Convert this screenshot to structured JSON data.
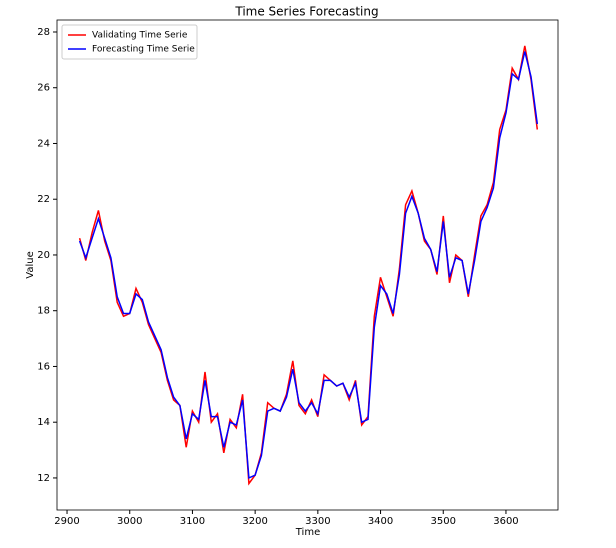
{
  "chart_data": {
    "type": "line",
    "title": "Time Series Forecasting",
    "x_label": "Time",
    "y_label": "Value",
    "x": [
      2920,
      2930,
      2940,
      2950,
      2960,
      2970,
      2980,
      2990,
      3000,
      3010,
      3020,
      3030,
      3040,
      3050,
      3060,
      3070,
      3080,
      3090,
      3100,
      3110,
      3120,
      3130,
      3140,
      3150,
      3160,
      3170,
      3180,
      3190,
      3200,
      3210,
      3220,
      3230,
      3240,
      3250,
      3260,
      3270,
      3280,
      3290,
      3300,
      3310,
      3320,
      3330,
      3340,
      3350,
      3360,
      3370,
      3380,
      3390,
      3400,
      3410,
      3420,
      3430,
      3440,
      3450,
      3460,
      3470,
      3480,
      3490,
      3500,
      3510,
      3520,
      3530,
      3540,
      3550,
      3560,
      3570,
      3580,
      3590,
      3600,
      3610,
      3620,
      3630,
      3640,
      3650
    ],
    "series": [
      {
        "name": "Validating Time Serie",
        "color": "#ff0000",
        "values": [
          20.6,
          19.8,
          20.8,
          21.6,
          20.5,
          19.8,
          18.3,
          17.8,
          17.9,
          18.8,
          18.3,
          17.5,
          17.0,
          16.5,
          15.5,
          14.8,
          14.6,
          13.1,
          14.4,
          14.0,
          15.8,
          14.0,
          14.3,
          12.9,
          14.1,
          13.8,
          15.0,
          11.8,
          12.1,
          12.9,
          14.7,
          14.5,
          14.4,
          15.0,
          16.2,
          14.6,
          14.3,
          14.8,
          14.2,
          15.7,
          15.5,
          15.3,
          15.4,
          14.8,
          15.5,
          13.9,
          14.2,
          17.8,
          19.2,
          18.5,
          17.8,
          19.5,
          21.8,
          22.3,
          21.5,
          20.5,
          20.2,
          19.3,
          21.4,
          19.0,
          20.0,
          19.8,
          18.5,
          20.0,
          21.4,
          21.8,
          22.6,
          24.5,
          25.2,
          26.7,
          26.3,
          27.5,
          26.3,
          24.5
        ]
      },
      {
        "name": "Forecasting Time Serie",
        "color": "#0000ff",
        "values": [
          20.5,
          19.9,
          20.6,
          21.3,
          20.6,
          19.9,
          18.5,
          17.9,
          17.9,
          18.6,
          18.4,
          17.6,
          17.1,
          16.6,
          15.6,
          14.9,
          14.6,
          13.4,
          14.3,
          14.1,
          15.5,
          14.2,
          14.2,
          13.1,
          14.0,
          13.9,
          14.8,
          12.0,
          12.1,
          12.8,
          14.4,
          14.5,
          14.4,
          14.9,
          15.9,
          14.7,
          14.4,
          14.7,
          14.3,
          15.5,
          15.5,
          15.3,
          15.4,
          14.9,
          15.4,
          14.0,
          14.1,
          17.4,
          18.9,
          18.6,
          17.9,
          19.3,
          21.5,
          22.1,
          21.5,
          20.6,
          20.2,
          19.4,
          21.2,
          19.2,
          19.9,
          19.8,
          18.6,
          19.8,
          21.2,
          21.7,
          22.4,
          24.2,
          25.1,
          26.5,
          26.3,
          27.3,
          26.4,
          24.7
        ]
      }
    ],
    "xlim": [
      2884,
      3683
    ],
    "ylim": [
      10.85,
      28.43
    ],
    "xticks": [
      2900,
      3000,
      3100,
      3200,
      3300,
      3400,
      3500,
      3600
    ],
    "yticks": [
      12,
      14,
      16,
      18,
      20,
      22,
      24,
      26,
      28
    ],
    "legend": "upper left"
  }
}
